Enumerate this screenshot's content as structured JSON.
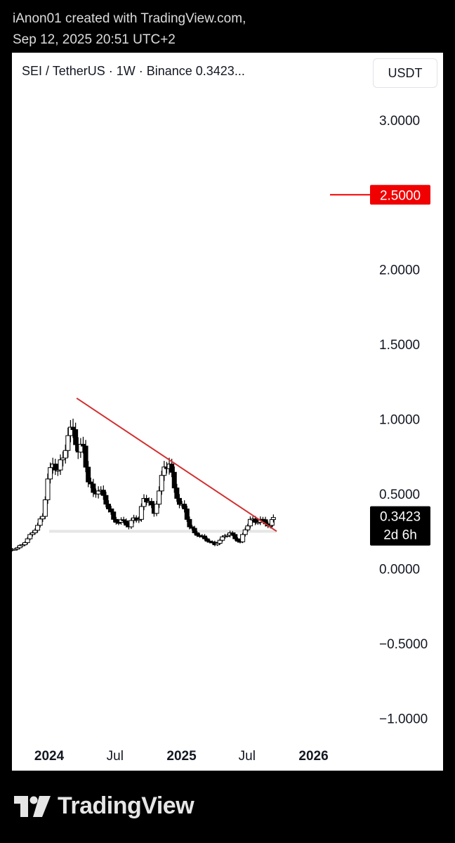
{
  "attribution": {
    "line1": "iAnon01 created with TradingView.com,",
    "line2": "Sep 12, 2025 20:51 UTC+2"
  },
  "header": {
    "symbol_line": "SEI / TetherUS · 1W · Binance  0.3423...",
    "currency": "USDT"
  },
  "footer": {
    "logo_text": "TradingView"
  },
  "colors": {
    "candle": "#000000",
    "trendline": "#d32f2f",
    "price_label_bg": "#000000",
    "target_line": "#f00000",
    "support_band": "#e6e6e6"
  },
  "chart_data": {
    "type": "candlestick",
    "title": "SEI / TetherUS · 1W · Binance",
    "ylim": [
      -1.35,
      3.45
    ],
    "y_ticks": [
      {
        "value": 3.0,
        "label": "3.0000"
      },
      {
        "value": 2.0,
        "label": "2.0000"
      },
      {
        "value": 1.5,
        "label": "1.5000"
      },
      {
        "value": 1.0,
        "label": "1.0000"
      },
      {
        "value": 0.5,
        "label": "0.5000"
      },
      {
        "value": 0.0,
        "label": "0.0000"
      },
      {
        "value": -0.5,
        "label": "−0.5000"
      },
      {
        "value": -1.0,
        "label": "−1.0000"
      }
    ],
    "x_ticks": [
      {
        "date": "2024-01-01",
        "label": "2024",
        "bold": true
      },
      {
        "date": "2024-07-01",
        "label": "Jul",
        "bold": false
      },
      {
        "date": "2025-01-01",
        "label": "2025",
        "bold": true
      },
      {
        "date": "2025-07-01",
        "label": "Jul",
        "bold": false
      },
      {
        "date": "2026-01-01",
        "label": "2026",
        "bold": true
      }
    ],
    "xlim": [
      "2023-09-20",
      "2026-05-10"
    ],
    "target_level": {
      "value": 2.5,
      "label": "2.5000"
    },
    "current_price": {
      "value": 0.3423,
      "label": "0.3423",
      "countdown": "2d 6h"
    },
    "trendline": {
      "start": {
        "date": "2024-03-17",
        "value": 1.14
      },
      "end": {
        "date": "2025-09-21",
        "value": 0.25
      }
    },
    "support_band": {
      "value": 0.25,
      "from": "2024-01-01",
      "to": "2025-09-21"
    },
    "close_series": [
      {
        "date": "2023-09-21",
        "close": 0.13
      },
      {
        "date": "2023-10-05",
        "close": 0.14
      },
      {
        "date": "2023-10-19",
        "close": 0.16
      },
      {
        "date": "2023-11-02",
        "close": 0.2
      },
      {
        "date": "2023-11-16",
        "close": 0.24
      },
      {
        "date": "2023-11-30",
        "close": 0.29
      },
      {
        "date": "2023-12-14",
        "close": 0.35
      },
      {
        "date": "2023-12-28",
        "close": 0.6
      },
      {
        "date": "2024-01-11",
        "close": 0.7
      },
      {
        "date": "2024-01-25",
        "close": 0.66
      },
      {
        "date": "2024-02-08",
        "close": 0.74
      },
      {
        "date": "2024-02-22",
        "close": 0.89
      },
      {
        "date": "2024-03-07",
        "close": 0.93
      },
      {
        "date": "2024-03-21",
        "close": 0.78
      },
      {
        "date": "2024-04-04",
        "close": 0.82
      },
      {
        "date": "2024-04-18",
        "close": 0.58
      },
      {
        "date": "2024-05-02",
        "close": 0.51
      },
      {
        "date": "2024-05-16",
        "close": 0.52
      },
      {
        "date": "2024-05-30",
        "close": 0.49
      },
      {
        "date": "2024-06-13",
        "close": 0.4
      },
      {
        "date": "2024-06-27",
        "close": 0.33
      },
      {
        "date": "2024-07-11",
        "close": 0.31
      },
      {
        "date": "2024-07-25",
        "close": 0.32
      },
      {
        "date": "2024-08-08",
        "close": 0.28
      },
      {
        "date": "2024-08-22",
        "close": 0.34
      },
      {
        "date": "2024-09-05",
        "close": 0.33
      },
      {
        "date": "2024-09-19",
        "close": 0.47
      },
      {
        "date": "2024-10-03",
        "close": 0.45
      },
      {
        "date": "2024-10-17",
        "close": 0.37
      },
      {
        "date": "2024-10-31",
        "close": 0.52
      },
      {
        "date": "2024-11-14",
        "close": 0.68
      },
      {
        "date": "2024-11-28",
        "close": 0.7
      },
      {
        "date": "2024-12-12",
        "close": 0.54
      },
      {
        "date": "2024-12-26",
        "close": 0.43
      },
      {
        "date": "2025-01-09",
        "close": 0.4
      },
      {
        "date": "2025-01-23",
        "close": 0.28
      },
      {
        "date": "2025-02-06",
        "close": 0.24
      },
      {
        "date": "2025-02-20",
        "close": 0.22
      },
      {
        "date": "2025-03-06",
        "close": 0.2
      },
      {
        "date": "2025-03-20",
        "close": 0.18
      },
      {
        "date": "2025-04-03",
        "close": 0.16
      },
      {
        "date": "2025-04-17",
        "close": 0.19
      },
      {
        "date": "2025-05-01",
        "close": 0.22
      },
      {
        "date": "2025-05-15",
        "close": 0.24
      },
      {
        "date": "2025-05-29",
        "close": 0.2
      },
      {
        "date": "2025-06-12",
        "close": 0.18
      },
      {
        "date": "2025-06-26",
        "close": 0.26
      },
      {
        "date": "2025-07-10",
        "close": 0.33
      },
      {
        "date": "2025-07-24",
        "close": 0.31
      },
      {
        "date": "2025-08-07",
        "close": 0.33
      },
      {
        "date": "2025-08-21",
        "close": 0.3
      },
      {
        "date": "2025-09-04",
        "close": 0.29
      },
      {
        "date": "2025-09-12",
        "close": 0.3423
      }
    ]
  }
}
